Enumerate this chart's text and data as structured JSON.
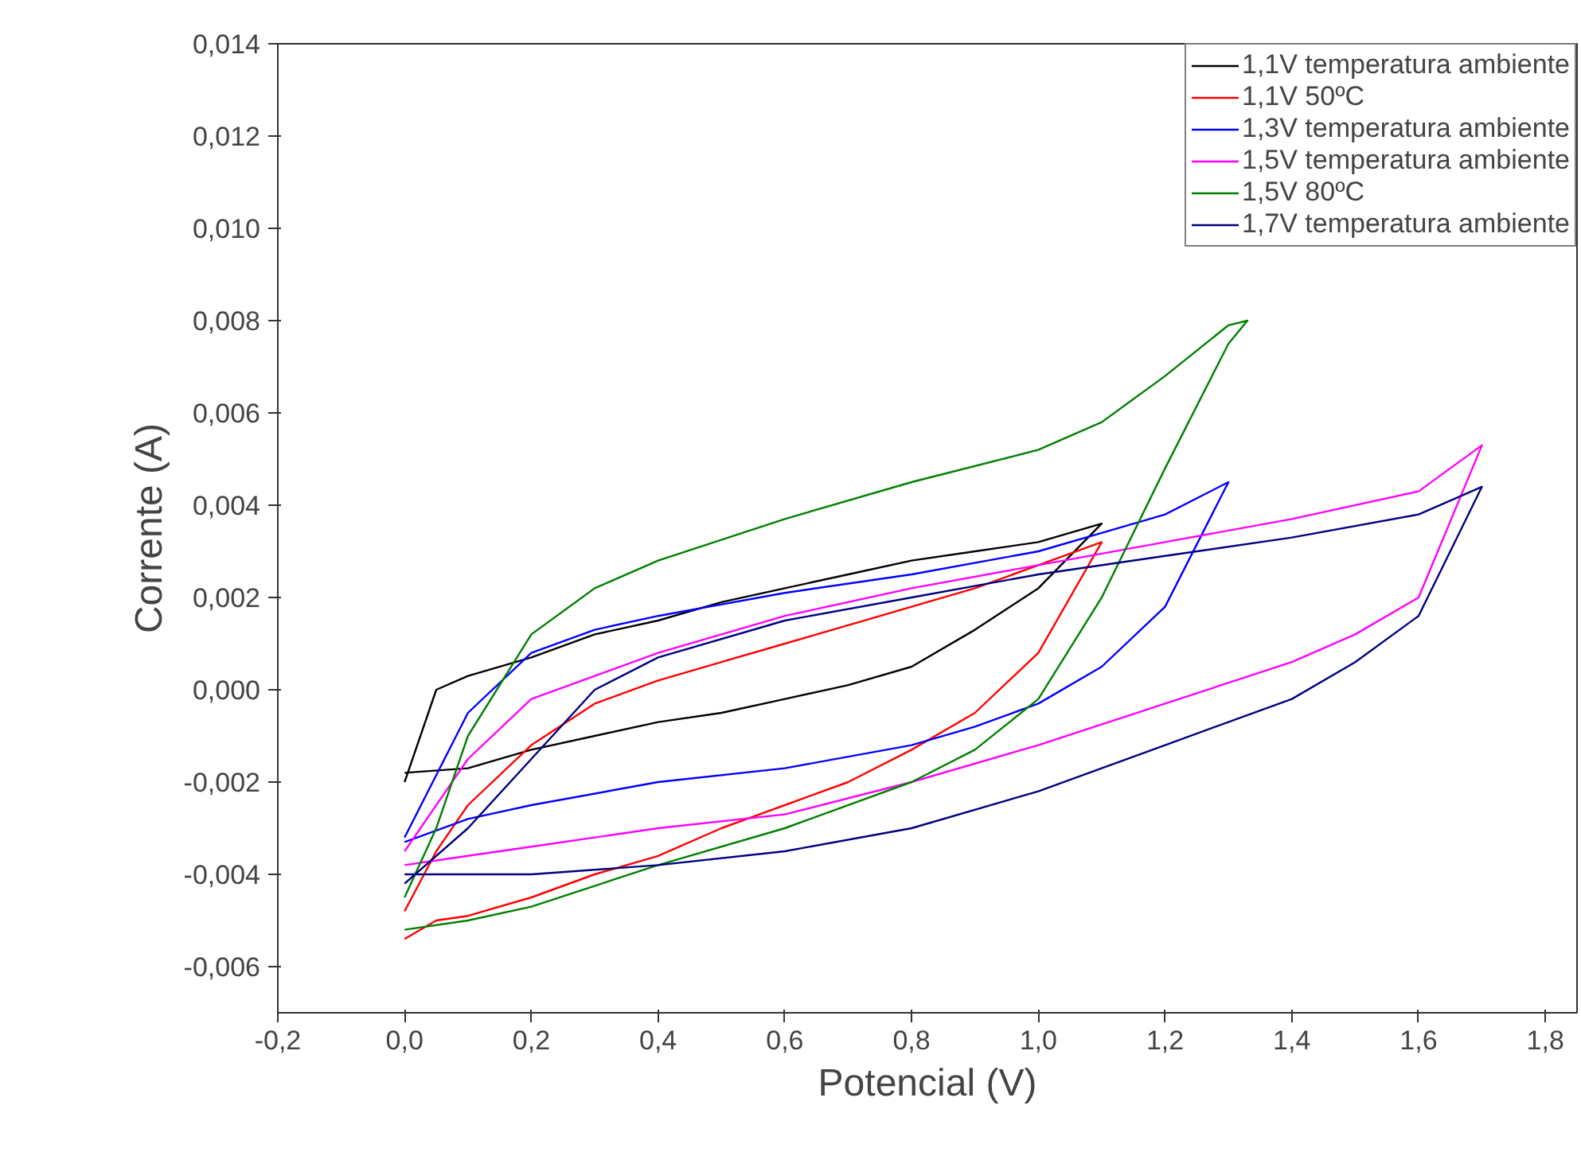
{
  "chart_data": {
    "type": "line",
    "xlabel": "Potencial (V)",
    "ylabel": "Corrente (A)",
    "xlim": [
      -0.2,
      1.85
    ],
    "ylim": [
      -0.007,
      0.014
    ],
    "xticks": [
      {
        "value": -0.2,
        "label": "-0,2"
      },
      {
        "value": 0,
        "label": "0,0"
      },
      {
        "value": 0.2,
        "label": "0,2"
      },
      {
        "value": 0.4,
        "label": "0,4"
      },
      {
        "value": 0.6,
        "label": "0,6"
      },
      {
        "value": 0.8,
        "label": "0,8"
      },
      {
        "value": 1.0,
        "label": "1,0"
      },
      {
        "value": 1.2,
        "label": "1,2"
      },
      {
        "value": 1.4,
        "label": "1,4"
      },
      {
        "value": 1.6,
        "label": "1,6"
      },
      {
        "value": 1.8,
        "label": "1,8"
      }
    ],
    "yticks": [
      {
        "value": -0.006,
        "label": "-0,006"
      },
      {
        "value": -0.004,
        "label": "-0,004"
      },
      {
        "value": -0.002,
        "label": "-0,002"
      },
      {
        "value": 0,
        "label": "0,000"
      },
      {
        "value": 0.002,
        "label": "0,002"
      },
      {
        "value": 0.004,
        "label": "0,004"
      },
      {
        "value": 0.006,
        "label": "0,006"
      },
      {
        "value": 0.008,
        "label": "0,008"
      },
      {
        "value": 0.01,
        "label": "0,010"
      },
      {
        "value": 0.012,
        "label": "0,012"
      },
      {
        "value": 0.014,
        "label": "0,014"
      }
    ],
    "grid": false,
    "legend": "top right",
    "marker": "none",
    "line_style": "solid",
    "series": [
      {
        "name": "1,1V temperatura ambiente",
        "color": "#000000",
        "x": [
          0,
          0.05,
          0.1,
          0.2,
          0.3,
          0.4,
          0.5,
          0.6,
          0.7,
          0.8,
          0.9,
          1.0,
          1.1,
          1.0,
          0.9,
          0.8,
          0.7,
          0.6,
          0.5,
          0.4,
          0.3,
          0.2,
          0.1,
          0
        ],
        "values": [
          -0.002,
          0.0,
          0.0003,
          0.0007,
          0.0012,
          0.0015,
          0.0019,
          0.0022,
          0.0025,
          0.0028,
          0.003,
          0.0032,
          0.0036,
          0.0022,
          0.0013,
          0.0005,
          0.0001,
          -0.0002,
          -0.0005,
          -0.0007,
          -0.001,
          -0.0013,
          -0.0017,
          -0.0018
        ]
      },
      {
        "name": "1,1V 50ºC",
        "color": "#ff0000",
        "x": [
          0,
          0.05,
          0.1,
          0.2,
          0.3,
          0.4,
          0.5,
          0.6,
          0.7,
          0.8,
          0.9,
          1.0,
          1.1,
          1.0,
          0.9,
          0.8,
          0.7,
          0.6,
          0.5,
          0.4,
          0.3,
          0.2,
          0.1,
          0.05,
          0
        ],
        "values": [
          -0.0054,
          -0.005,
          -0.0049,
          -0.0045,
          -0.004,
          -0.0036,
          -0.003,
          -0.0025,
          -0.002,
          -0.0013,
          -0.0005,
          0.0008,
          0.0032,
          0.0027,
          0.0022,
          0.0018,
          0.0014,
          0.001,
          0.0006,
          0.0002,
          -0.0003,
          -0.0012,
          -0.0025,
          -0.0035,
          -0.0048
        ]
      },
      {
        "name": "1,3V temperatura ambiente",
        "color": "#0000ff",
        "x": [
          0,
          0.1,
          0.2,
          0.3,
          0.4,
          0.6,
          0.8,
          1.0,
          1.1,
          1.2,
          1.3,
          1.2,
          1.1,
          1.0,
          0.9,
          0.8,
          0.6,
          0.4,
          0.2,
          0.1,
          0
        ],
        "values": [
          -0.0032,
          -0.0005,
          0.0008,
          0.0013,
          0.0016,
          0.0021,
          0.0025,
          0.003,
          0.0034,
          0.0038,
          0.0045,
          0.0018,
          0.0005,
          -0.0003,
          -0.0008,
          -0.0012,
          -0.0017,
          -0.002,
          -0.0025,
          -0.0028,
          -0.0033
        ]
      },
      {
        "name": "1,5V temperatura ambiente",
        "color": "#ff00ff",
        "x": [
          0,
          0.1,
          0.2,
          0.3,
          0.4,
          0.6,
          0.8,
          1.0,
          1.2,
          1.4,
          1.6,
          1.7,
          1.6,
          1.5,
          1.4,
          1.2,
          1.0,
          0.8,
          0.6,
          0.4,
          0.2,
          0.1,
          0
        ],
        "values": [
          -0.0035,
          -0.0015,
          -0.0002,
          0.0003,
          0.0008,
          0.0016,
          0.0022,
          0.0027,
          0.0032,
          0.0037,
          0.0043,
          0.0053,
          0.002,
          0.0012,
          0.0006,
          -0.0003,
          -0.0012,
          -0.002,
          -0.0027,
          -0.003,
          -0.0034,
          -0.0036,
          -0.0038
        ]
      },
      {
        "name": "1,5V 80ºC",
        "color": "#008000",
        "x": [
          0,
          0.1,
          0.2,
          0.4,
          0.6,
          0.8,
          0.9,
          1.0,
          1.1,
          1.2,
          1.3,
          1.33,
          1.3,
          1.2,
          1.1,
          1.0,
          0.8,
          0.6,
          0.4,
          0.3,
          0.2,
          0.1,
          0.05,
          0
        ],
        "values": [
          -0.0052,
          -0.005,
          -0.0047,
          -0.0038,
          -0.003,
          -0.002,
          -0.0013,
          -0.0002,
          0.002,
          0.0048,
          0.0075,
          0.008,
          0.0079,
          0.0068,
          0.0058,
          0.0052,
          0.0045,
          0.0037,
          0.0028,
          0.0022,
          0.0012,
          -0.001,
          -0.003,
          -0.0045
        ]
      },
      {
        "name": "1,7V temperatura ambiente",
        "color": "#000080",
        "x": [
          0,
          0.1,
          0.2,
          0.3,
          0.4,
          0.6,
          0.8,
          1.0,
          1.2,
          1.4,
          1.6,
          1.7,
          1.6,
          1.5,
          1.4,
          1.2,
          1.0,
          0.8,
          0.6,
          0.4,
          0.2,
          0
        ],
        "values": [
          -0.0042,
          -0.003,
          -0.0015,
          0.0,
          0.0007,
          0.0015,
          0.002,
          0.0025,
          0.0029,
          0.0033,
          0.0038,
          0.0044,
          0.0016,
          0.0006,
          -0.0002,
          -0.0012,
          -0.0022,
          -0.003,
          -0.0035,
          -0.0038,
          -0.004,
          -0.004
        ]
      }
    ]
  }
}
